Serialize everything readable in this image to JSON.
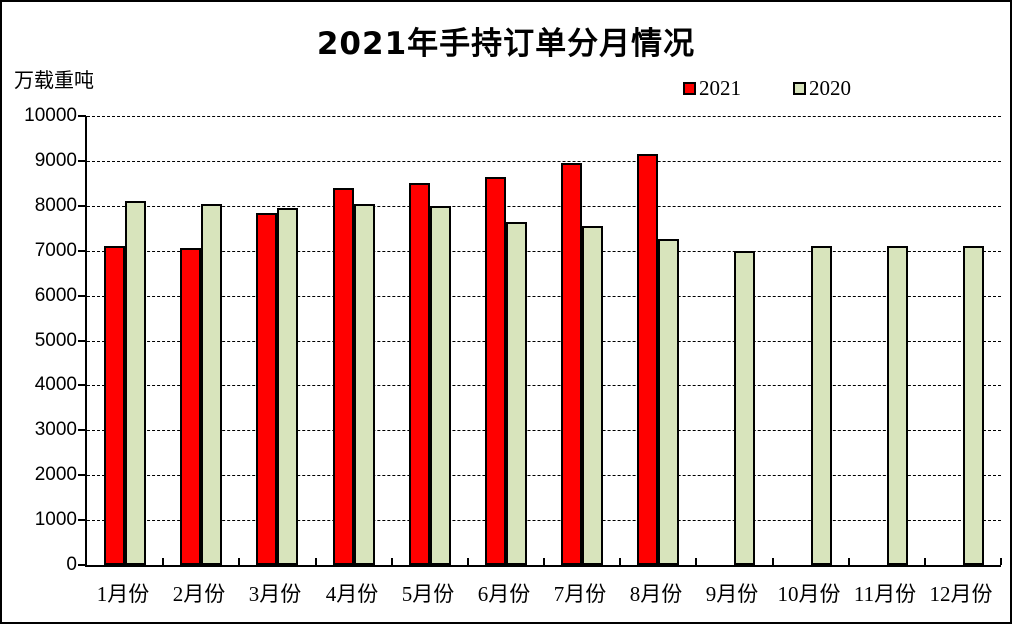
{
  "chart_data": {
    "type": "bar",
    "title": "2021年手持订单分月情况",
    "ylabel": "万载重吨",
    "xlabel": "",
    "categories": [
      "1月份",
      "2月份",
      "3月份",
      "4月份",
      "5月份",
      "6月份",
      "7月份",
      "8月份",
      "9月份",
      "10月份",
      "11月份",
      "12月份"
    ],
    "series": [
      {
        "name": "2021",
        "color": "#FF0000",
        "values": [
          7100,
          7050,
          7850,
          8400,
          8500,
          8650,
          8950,
          9150,
          null,
          null,
          null,
          null
        ]
      },
      {
        "name": "2020",
        "color": "#D8E4BC",
        "values": [
          8100,
          8050,
          7950,
          8050,
          8000,
          7650,
          7550,
          7250,
          7000,
          7100,
          7100,
          7100
        ]
      }
    ],
    "ylim": [
      0,
      10000
    ],
    "y_ticks": [
      0,
      1000,
      2000,
      3000,
      4000,
      5000,
      6000,
      7000,
      8000,
      9000,
      10000
    ],
    "grid": true,
    "grid_style": "dashed",
    "legend_position": "top-right",
    "bar_border_color": "#000000",
    "background_color": "#FFFFFF"
  }
}
